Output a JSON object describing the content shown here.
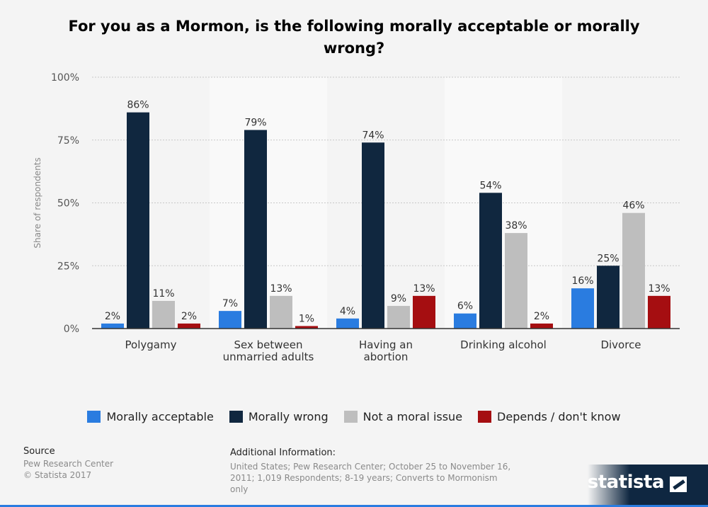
{
  "title": "For you as a Mormon, is the following morally acceptable or morally wrong?",
  "chart_data": {
    "type": "bar",
    "categories": [
      "Polygamy",
      "Sex between\nunmarried adults",
      "Having an\nabortion",
      "Drinking alcohol",
      "Divorce"
    ],
    "series": [
      {
        "name": "Morally acceptable",
        "color": "#2a7ce0",
        "values": [
          2,
          7,
          4,
          6,
          16
        ]
      },
      {
        "name": "Morally wrong",
        "color": "#10273f",
        "values": [
          86,
          79,
          74,
          54,
          25
        ]
      },
      {
        "name": "Not a moral issue",
        "color": "#bebebe",
        "values": [
          11,
          13,
          9,
          38,
          46
        ]
      },
      {
        "name": "Depends / don't know",
        "color": "#a50e11",
        "values": [
          2,
          1,
          13,
          2,
          13
        ]
      }
    ],
    "ylabel": "Share of respondents",
    "ylim": [
      0,
      100
    ],
    "yticks": [
      "0%",
      "25%",
      "50%",
      "75%",
      "100%"
    ],
    "value_suffix": "%",
    "grid": true,
    "legend_position": "bottom"
  },
  "footer": {
    "source_header": "Source",
    "source_lines": [
      "Pew Research Center",
      "© Statista 2017"
    ],
    "additional_header": "Additional Information:",
    "additional_text": "United States; Pew Research Center; October 25 to November 16, 2011; 1,019 Respondents; 8-19 years; Converts to Mormonism only"
  },
  "brand": {
    "name": "statista"
  }
}
